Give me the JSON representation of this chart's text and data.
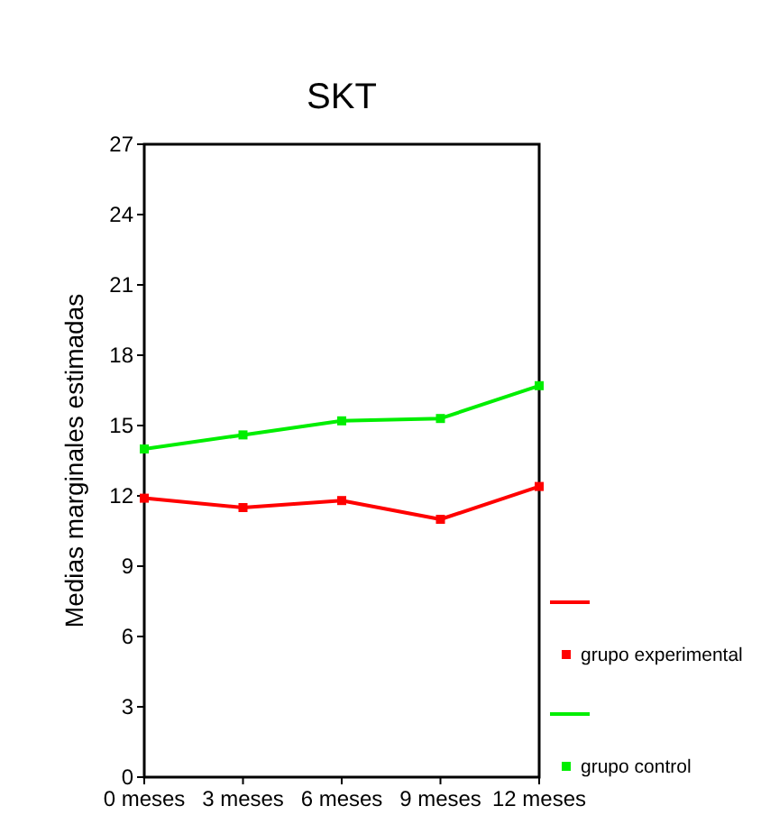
{
  "chart_data": {
    "type": "line",
    "title": "SKT",
    "ylabel": "Medias marginales estimadas",
    "categories": [
      "0 meses",
      "3 meses",
      "6 meses",
      "9 meses",
      "12 meses"
    ],
    "series": [
      {
        "name": "grupo experimental",
        "color": "#ff0000",
        "values": [
          11.9,
          11.5,
          11.8,
          11.0,
          12.4
        ]
      },
      {
        "name": "grupo control",
        "color": "#00ee00",
        "values": [
          14.0,
          14.6,
          15.2,
          15.3,
          16.7
        ]
      }
    ],
    "ylim": [
      0,
      27
    ],
    "yticks": [
      0,
      3,
      6,
      9,
      12,
      15,
      18,
      21,
      24,
      27
    ],
    "marker": "square",
    "legend": "right",
    "grid": false
  }
}
